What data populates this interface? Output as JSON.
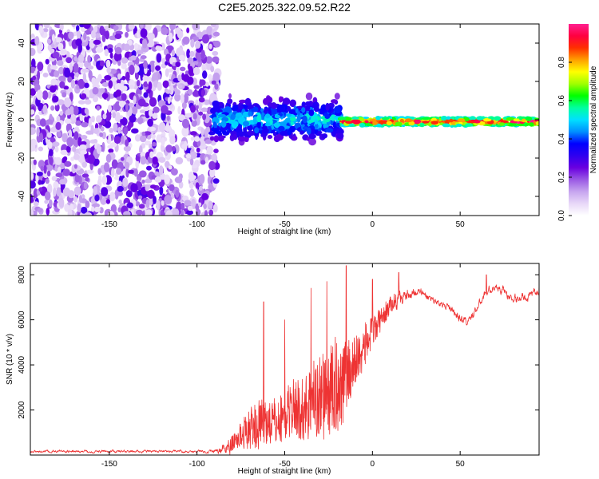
{
  "title": "C2E5.2025.322.09.52.R22",
  "chart_data": [
    {
      "type": "heatmap",
      "xlabel": "Height of straight line (km)",
      "ylabel": "Frequency (Hz)",
      "xlim": [
        -195,
        95
      ],
      "ylim": [
        -50,
        50
      ],
      "xticks": [
        -150,
        -100,
        -50,
        0,
        50
      ],
      "yticks": [
        -40,
        -20,
        0,
        20,
        40
      ],
      "colorbar": {
        "label": "Normalized spectral amplitude",
        "range": [
          0,
          1
        ],
        "ticks": [
          "0.0",
          "0.2",
          "0.4",
          "0.6",
          "0.8"
        ],
        "ticks_values": [
          0.0,
          0.2,
          0.4,
          0.6,
          0.8
        ],
        "colormap": [
          "#ffffff",
          "#e8d8f8",
          "#c7a5ef",
          "#9a58e4",
          "#6a00e0",
          "#2f00f0",
          "#0000ff",
          "#0090ff",
          "#00e0ff",
          "#00ffa0",
          "#00ff00",
          "#a0ff00",
          "#ffff00",
          "#ffa000",
          "#ff3000",
          "#ff0040",
          "#ff2090"
        ]
      },
      "regions": [
        {
          "name": "noise",
          "x_range": [
            -195,
            -88
          ],
          "freq_range": [
            -50,
            50
          ],
          "amplitude": [
            0.05,
            0.3
          ]
        },
        {
          "name": "transition",
          "x_range": [
            -92,
            -18
          ],
          "freq_center": 0,
          "freq_halfwidth": 8,
          "amplitude": [
            0.2,
            0.55
          ]
        },
        {
          "name": "signal",
          "x_range": [
            -18,
            95
          ],
          "freq_center": -1,
          "freq_halfwidth": 2,
          "amplitude": [
            0.5,
            1.0
          ]
        }
      ]
    },
    {
      "type": "line",
      "xlabel": "Height of straight line (km)",
      "ylabel": "SNR (10 * v/v)",
      "xlim": [
        -195,
        95
      ],
      "ylim": [
        0,
        8500
      ],
      "xticks": [
        -150,
        -100,
        -50,
        0,
        50
      ],
      "yticks": [
        2000,
        4000,
        6000,
        8000
      ],
      "color": "#ee3333",
      "profile": {
        "x": [
          -195,
          -150,
          -100,
          -90,
          -85,
          -80,
          -75,
          -70,
          -65,
          -60,
          -55,
          -50,
          -45,
          -40,
          -35,
          -30,
          -25,
          -20,
          -15,
          -10,
          -5,
          0,
          5,
          10,
          15,
          20,
          25,
          30,
          35,
          40,
          45,
          50,
          55,
          60,
          65,
          70,
          75,
          80,
          85,
          90,
          95
        ],
        "base": [
          150,
          160,
          170,
          180,
          250,
          400,
          700,
          900,
          1000,
          1200,
          1100,
          1400,
          1800,
          1500,
          1900,
          2000,
          2200,
          2400,
          3000,
          3700,
          4500,
          5200,
          5900,
          6500,
          7000,
          7200,
          7300,
          7100,
          6900,
          6700,
          6400,
          6100,
          5900,
          6600,
          7200,
          7500,
          7300,
          6900,
          7000,
          7100,
          7300
        ],
        "spread": [
          80,
          80,
          80,
          120,
          300,
          700,
          1200,
          1800,
          2200,
          2000,
          2200,
          2300,
          2500,
          3000,
          3500,
          4000,
          4200,
          4500,
          3500,
          2500,
          2000,
          1500,
          1000,
          800,
          500,
          400,
          300,
          250,
          200,
          200,
          250,
          250,
          250,
          250,
          250,
          250,
          250,
          250,
          250,
          250,
          250
        ]
      },
      "peaks": [
        {
          "x": -62,
          "y": 6800
        },
        {
          "x": -50,
          "y": 6000
        },
        {
          "x": -35,
          "y": 7400
        },
        {
          "x": -26,
          "y": 7700
        },
        {
          "x": -15,
          "y": 8400
        },
        {
          "x": 0,
          "y": 7800
        },
        {
          "x": 15,
          "y": 8100
        },
        {
          "x": 65,
          "y": 8000
        },
        {
          "x": 95,
          "y": 7600
        }
      ]
    }
  ]
}
